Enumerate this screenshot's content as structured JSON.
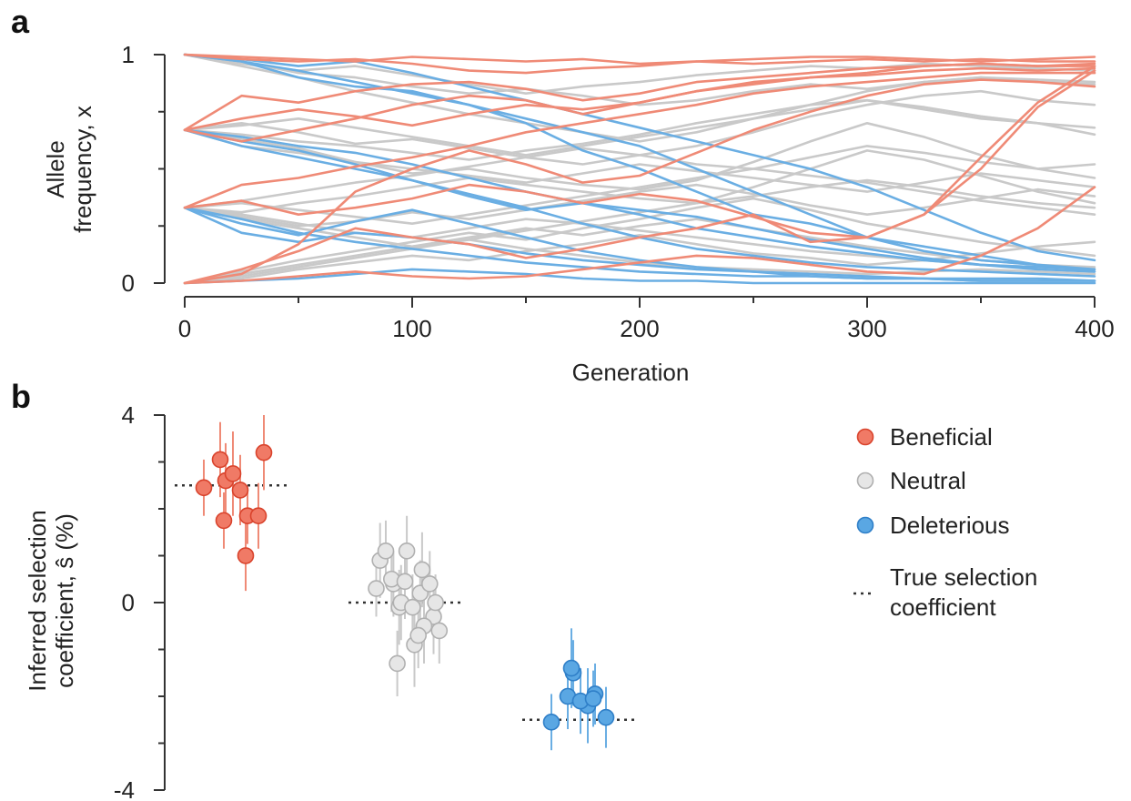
{
  "panel_a": {
    "letter": "a"
  },
  "panel_b": {
    "letter": "b"
  },
  "colors": {
    "beneficial_line": "#ef8a76",
    "neutral_line": "#c9c9c9",
    "deleterious_line": "#6aaee3",
    "beneficial_fill": "#f07a66",
    "beneficial_edge": "#d9432c",
    "neutral_fill": "#e6e6e6",
    "neutral_edge": "#b0b0b0",
    "deleterious_fill": "#5aa7e3",
    "deleterious_edge": "#2f7fc8",
    "true_line": "#333333"
  },
  "chart_data": [
    {
      "type": "line",
      "panel": "a",
      "xlabel": "Generation",
      "ylabel": "Allele frequency, x",
      "xlim": [
        0,
        400
      ],
      "ylim": [
        0,
        1
      ],
      "xticks": [
        "0",
        "100",
        "200",
        "300",
        "400"
      ],
      "yticks": [
        "0",
        "1"
      ],
      "x": [
        0,
        25,
        50,
        75,
        100,
        125,
        150,
        175,
        200,
        225,
        250,
        275,
        300,
        325,
        350,
        375,
        400
      ],
      "series": [
        {
          "group": "beneficial",
          "values": [
            1.0,
            0.98,
            0.97,
            0.98,
            0.96,
            0.93,
            0.92,
            0.94,
            0.95,
            0.97,
            0.96,
            0.97,
            0.98,
            0.97,
            0.98,
            0.97,
            0.97
          ]
        },
        {
          "group": "beneficial",
          "values": [
            0.67,
            0.82,
            0.79,
            0.84,
            0.87,
            0.88,
            0.85,
            0.8,
            0.83,
            0.88,
            0.9,
            0.92,
            0.94,
            0.95,
            0.96,
            0.95,
            0.96
          ]
        },
        {
          "group": "beneficial",
          "values": [
            0.67,
            0.62,
            0.67,
            0.72,
            0.78,
            0.82,
            0.8,
            0.74,
            0.79,
            0.84,
            0.88,
            0.9,
            0.91,
            0.93,
            0.94,
            0.93,
            0.94
          ]
        },
        {
          "group": "beneficial",
          "values": [
            0.33,
            0.43,
            0.46,
            0.51,
            0.55,
            0.6,
            0.66,
            0.7,
            0.74,
            0.78,
            0.83,
            0.86,
            0.88,
            0.9,
            0.92,
            0.92,
            0.92
          ]
        },
        {
          "group": "beneficial",
          "values": [
            0.0,
            0.04,
            0.17,
            0.4,
            0.5,
            0.58,
            0.52,
            0.44,
            0.47,
            0.57,
            0.67,
            0.75,
            0.82,
            0.87,
            0.89,
            0.88,
            0.86
          ]
        },
        {
          "group": "beneficial",
          "values": [
            0.33,
            0.36,
            0.3,
            0.33,
            0.37,
            0.43,
            0.4,
            0.35,
            0.39,
            0.36,
            0.29,
            0.22,
            0.2,
            0.3,
            0.55,
            0.79,
            0.95
          ]
        },
        {
          "group": "beneficial",
          "values": [
            0.0,
            0.06,
            0.14,
            0.24,
            0.2,
            0.17,
            0.11,
            0.15,
            0.2,
            0.24,
            0.3,
            0.18,
            0.2,
            0.3,
            0.5,
            0.77,
            0.93
          ]
        },
        {
          "group": "beneficial",
          "values": [
            0.0,
            0.01,
            0.03,
            0.05,
            0.03,
            0.02,
            0.03,
            0.06,
            0.09,
            0.12,
            0.11,
            0.08,
            0.05,
            0.04,
            0.12,
            0.24,
            0.42
          ]
        },
        {
          "group": "beneficial",
          "values": [
            0.67,
            0.72,
            0.76,
            0.73,
            0.69,
            0.74,
            0.78,
            0.76,
            0.79,
            0.84,
            0.87,
            0.9,
            0.92,
            0.95,
            0.96,
            0.95,
            0.95
          ]
        },
        {
          "group": "beneficial",
          "values": [
            1.0,
            0.99,
            0.98,
            0.97,
            0.99,
            0.98,
            0.97,
            0.98,
            0.96,
            0.97,
            0.98,
            0.99,
            0.99,
            0.98,
            0.97,
            0.98,
            0.99
          ]
        },
        {
          "group": "neutral",
          "values": [
            1.0,
            0.97,
            0.92,
            0.9,
            0.86,
            0.83,
            0.85,
            0.82,
            0.78,
            0.8,
            0.84,
            0.87,
            0.85,
            0.88,
            0.9,
            0.89,
            0.88
          ]
        },
        {
          "group": "neutral",
          "values": [
            0.67,
            0.65,
            0.62,
            0.6,
            0.57,
            0.54,
            0.58,
            0.61,
            0.65,
            0.7,
            0.74,
            0.78,
            0.8,
            0.76,
            0.72,
            0.7,
            0.65
          ]
        },
        {
          "group": "neutral",
          "values": [
            0.67,
            0.63,
            0.59,
            0.53,
            0.48,
            0.5,
            0.46,
            0.43,
            0.41,
            0.45,
            0.53,
            0.62,
            0.7,
            0.64,
            0.56,
            0.5,
            0.46
          ]
        },
        {
          "group": "neutral",
          "values": [
            0.67,
            0.7,
            0.66,
            0.61,
            0.63,
            0.59,
            0.55,
            0.52,
            0.56,
            0.6,
            0.66,
            0.73,
            0.78,
            0.82,
            0.84,
            0.8,
            0.78
          ]
        },
        {
          "group": "neutral",
          "values": [
            0.33,
            0.31,
            0.35,
            0.38,
            0.42,
            0.46,
            0.43,
            0.4,
            0.37,
            0.35,
            0.38,
            0.42,
            0.45,
            0.42,
            0.38,
            0.35,
            0.33
          ]
        },
        {
          "group": "neutral",
          "values": [
            0.33,
            0.29,
            0.25,
            0.27,
            0.31,
            0.28,
            0.32,
            0.36,
            0.4,
            0.43,
            0.39,
            0.34,
            0.3,
            0.33,
            0.37,
            0.41,
            0.38
          ]
        },
        {
          "group": "neutral",
          "values": [
            0.33,
            0.36,
            0.4,
            0.44,
            0.47,
            0.51,
            0.55,
            0.59,
            0.56,
            0.52,
            0.5,
            0.55,
            0.6,
            0.57,
            0.53,
            0.5,
            0.52
          ]
        },
        {
          "group": "neutral",
          "values": [
            0.0,
            0.05,
            0.1,
            0.14,
            0.18,
            0.22,
            0.19,
            0.24,
            0.28,
            0.33,
            0.37,
            0.32,
            0.26,
            0.22,
            0.18,
            0.15,
            0.12
          ]
        },
        {
          "group": "neutral",
          "values": [
            0.0,
            0.03,
            0.07,
            0.11,
            0.15,
            0.19,
            0.23,
            0.27,
            0.31,
            0.35,
            0.42,
            0.5,
            0.58,
            0.54,
            0.47,
            0.4,
            0.35
          ]
        },
        {
          "group": "neutral",
          "values": [
            0.0,
            0.02,
            0.06,
            0.09,
            0.12,
            0.1,
            0.14,
            0.17,
            0.21,
            0.17,
            0.13,
            0.11,
            0.08,
            0.1,
            0.13,
            0.16,
            0.18
          ]
        },
        {
          "group": "neutral",
          "values": [
            0.33,
            0.3,
            0.26,
            0.22,
            0.2,
            0.24,
            0.28,
            0.26,
            0.23,
            0.2,
            0.17,
            0.14,
            0.12,
            0.1,
            0.08,
            0.07,
            0.06
          ]
        },
        {
          "group": "neutral",
          "values": [
            0.67,
            0.6,
            0.57,
            0.53,
            0.5,
            0.47,
            0.44,
            0.48,
            0.52,
            0.49,
            0.46,
            0.43,
            0.4,
            0.44,
            0.48,
            0.45,
            0.42
          ]
        },
        {
          "group": "neutral",
          "values": [
            1.0,
            0.95,
            0.9,
            0.84,
            0.79,
            0.74,
            0.7,
            0.66,
            0.62,
            0.66,
            0.72,
            0.78,
            0.84,
            0.88,
            0.9,
            0.88,
            0.87
          ]
        },
        {
          "group": "neutral",
          "values": [
            0.33,
            0.28,
            0.24,
            0.2,
            0.16,
            0.19,
            0.15,
            0.12,
            0.09,
            0.07,
            0.06,
            0.05,
            0.04,
            0.05,
            0.06,
            0.05,
            0.04
          ]
        },
        {
          "group": "neutral",
          "values": [
            0.0,
            0.04,
            0.08,
            0.12,
            0.16,
            0.2,
            0.24,
            0.21,
            0.25,
            0.28,
            0.24,
            0.2,
            0.16,
            0.13,
            0.1,
            0.08,
            0.07
          ]
        },
        {
          "group": "neutral",
          "values": [
            0.67,
            0.69,
            0.72,
            0.68,
            0.64,
            0.6,
            0.56,
            0.6,
            0.64,
            0.68,
            0.72,
            0.76,
            0.8,
            0.77,
            0.73,
            0.7,
            0.68
          ]
        },
        {
          "group": "neutral",
          "values": [
            0.33,
            0.35,
            0.32,
            0.29,
            0.26,
            0.3,
            0.34,
            0.38,
            0.42,
            0.46,
            0.5,
            0.47,
            0.44,
            0.4,
            0.36,
            0.33,
            0.3
          ]
        },
        {
          "group": "neutral",
          "values": [
            1.0,
            0.96,
            0.93,
            0.95,
            0.91,
            0.87,
            0.83,
            0.86,
            0.88,
            0.91,
            0.93,
            0.95,
            0.94,
            0.96,
            0.95,
            0.94,
            0.93
          ]
        },
        {
          "group": "deleterious",
          "values": [
            1.0,
            0.97,
            0.93,
            0.88,
            0.83,
            0.78,
            0.72,
            0.66,
            0.6,
            0.5,
            0.4,
            0.3,
            0.2,
            0.14,
            0.1,
            0.08,
            0.06
          ]
        },
        {
          "group": "deleterious",
          "values": [
            1.0,
            0.98,
            0.95,
            0.97,
            0.92,
            0.86,
            0.8,
            0.74,
            0.68,
            0.62,
            0.56,
            0.5,
            0.42,
            0.32,
            0.22,
            0.14,
            0.1
          ]
        },
        {
          "group": "deleterious",
          "values": [
            0.67,
            0.6,
            0.55,
            0.5,
            0.45,
            0.39,
            0.33,
            0.26,
            0.2,
            0.15,
            0.12,
            0.09,
            0.07,
            0.06,
            0.05,
            0.04,
            0.03
          ]
        },
        {
          "group": "deleterious",
          "values": [
            0.67,
            0.62,
            0.58,
            0.52,
            0.45,
            0.38,
            0.32,
            0.35,
            0.3,
            0.24,
            0.2,
            0.16,
            0.13,
            0.1,
            0.08,
            0.07,
            0.06
          ]
        },
        {
          "group": "deleterious",
          "values": [
            0.33,
            0.28,
            0.22,
            0.18,
            0.15,
            0.12,
            0.09,
            0.07,
            0.05,
            0.04,
            0.03,
            0.03,
            0.02,
            0.02,
            0.01,
            0.01,
            0.01
          ]
        },
        {
          "group": "deleterious",
          "values": [
            0.33,
            0.22,
            0.18,
            0.22,
            0.2,
            0.17,
            0.13,
            0.1,
            0.08,
            0.06,
            0.05,
            0.04,
            0.03,
            0.02,
            0.02,
            0.02,
            0.01
          ]
        },
        {
          "group": "deleterious",
          "values": [
            0.0,
            0.01,
            0.02,
            0.04,
            0.06,
            0.05,
            0.04,
            0.02,
            0.01,
            0.01,
            0.0,
            0.0,
            0.0,
            0.0,
            0.0,
            0.0,
            0.0
          ]
        },
        {
          "group": "deleterious",
          "values": [
            1.0,
            0.97,
            0.9,
            0.86,
            0.84,
            0.78,
            0.7,
            0.58,
            0.5,
            0.4,
            0.3,
            0.26,
            0.2,
            0.16,
            0.12,
            0.08,
            0.05
          ]
        },
        {
          "group": "deleterious",
          "values": [
            0.67,
            0.64,
            0.6,
            0.57,
            0.52,
            0.46,
            0.4,
            0.35,
            0.32,
            0.29,
            0.24,
            0.19,
            0.15,
            0.11,
            0.08,
            0.06,
            0.05
          ]
        },
        {
          "group": "deleterious",
          "values": [
            0.33,
            0.26,
            0.21,
            0.27,
            0.32,
            0.26,
            0.2,
            0.14,
            0.1,
            0.07,
            0.05,
            0.03,
            0.02,
            0.02,
            0.01,
            0.01,
            0.01
          ]
        }
      ]
    },
    {
      "type": "scatter",
      "panel": "b",
      "ylabel": "Inferred selection coefficient, ŝ (%)",
      "ylim": [
        -4,
        4
      ],
      "yticks": [
        "4",
        "0",
        "-4"
      ],
      "legend": [
        "Beneficial",
        "Neutral",
        "Deleterious",
        "True selection coefficient"
      ],
      "legend_placement": "right",
      "groups": [
        {
          "name": "Beneficial",
          "true_value": 2.5,
          "points": [
            {
              "y": 2.45,
              "err": 0.6
            },
            {
              "y": 3.05,
              "err": 0.8
            },
            {
              "y": 2.6,
              "err": 0.8
            },
            {
              "y": 2.4,
              "err": 0.75
            },
            {
              "y": 1.75,
              "err": 0.6
            },
            {
              "y": 2.75,
              "err": 0.9
            },
            {
              "y": 1.85,
              "err": 0.6
            },
            {
              "y": 1.0,
              "err": 0.75
            },
            {
              "y": 1.85,
              "err": 0.7
            },
            {
              "y": 3.2,
              "err": 0.8
            }
          ]
        },
        {
          "name": "Neutral",
          "true_value": 0.0,
          "points": [
            {
              "y": 0.3,
              "err": 0.6
            },
            {
              "y": 0.4,
              "err": 0.7
            },
            {
              "y": -0.1,
              "err": 0.8
            },
            {
              "y": -0.9,
              "err": 0.9
            },
            {
              "y": -1.3,
              "err": 0.7
            },
            {
              "y": 1.1,
              "err": 0.75
            },
            {
              "y": 0.7,
              "err": 0.8
            },
            {
              "y": 0.2,
              "err": 0.7
            },
            {
              "y": -0.3,
              "err": 0.8
            },
            {
              "y": -0.6,
              "err": 0.7
            },
            {
              "y": 0.9,
              "err": 0.8
            },
            {
              "y": 0.5,
              "err": 0.7
            },
            {
              "y": 0.0,
              "err": 0.8
            },
            {
              "y": -0.1,
              "err": 0.7
            },
            {
              "y": -0.5,
              "err": 0.8
            },
            {
              "y": 0.4,
              "err": 0.7
            },
            {
              "y": 1.1,
              "err": 0.65
            },
            {
              "y": 0.45,
              "err": 0.8
            },
            {
              "y": -0.7,
              "err": 0.7
            },
            {
              "y": 0.0,
              "err": 0.6
            }
          ]
        },
        {
          "name": "Deleterious",
          "true_value": -2.5,
          "points": [
            {
              "y": -2.55,
              "err": 0.6
            },
            {
              "y": -2.0,
              "err": 0.7
            },
            {
              "y": -1.5,
              "err": 0.7
            },
            {
              "y": -2.2,
              "err": 0.8
            },
            {
              "y": -1.4,
              "err": 0.85
            },
            {
              "y": -2.1,
              "err": 0.7
            },
            {
              "y": -1.95,
              "err": 0.65
            },
            {
              "y": -2.05,
              "err": 0.6
            },
            {
              "y": -2.45,
              "err": 0.65
            }
          ]
        }
      ]
    }
  ]
}
